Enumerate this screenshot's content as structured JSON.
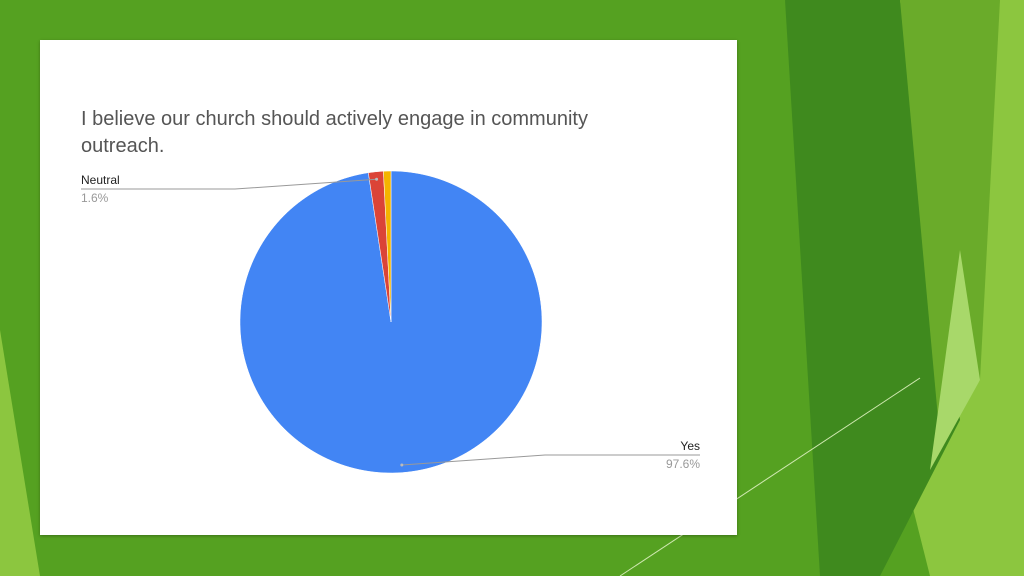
{
  "chart_data": {
    "type": "pie",
    "title": "I believe our church should actively engage in community outreach.",
    "categories": [
      "Yes",
      "Neutral",
      null
    ],
    "values": [
      97.6,
      1.6,
      0.8
    ],
    "value_labels": [
      "97.6%",
      "1.6%",
      null
    ],
    "colors": [
      "#4285f4",
      "#db4437",
      "#f4b400"
    ]
  }
}
